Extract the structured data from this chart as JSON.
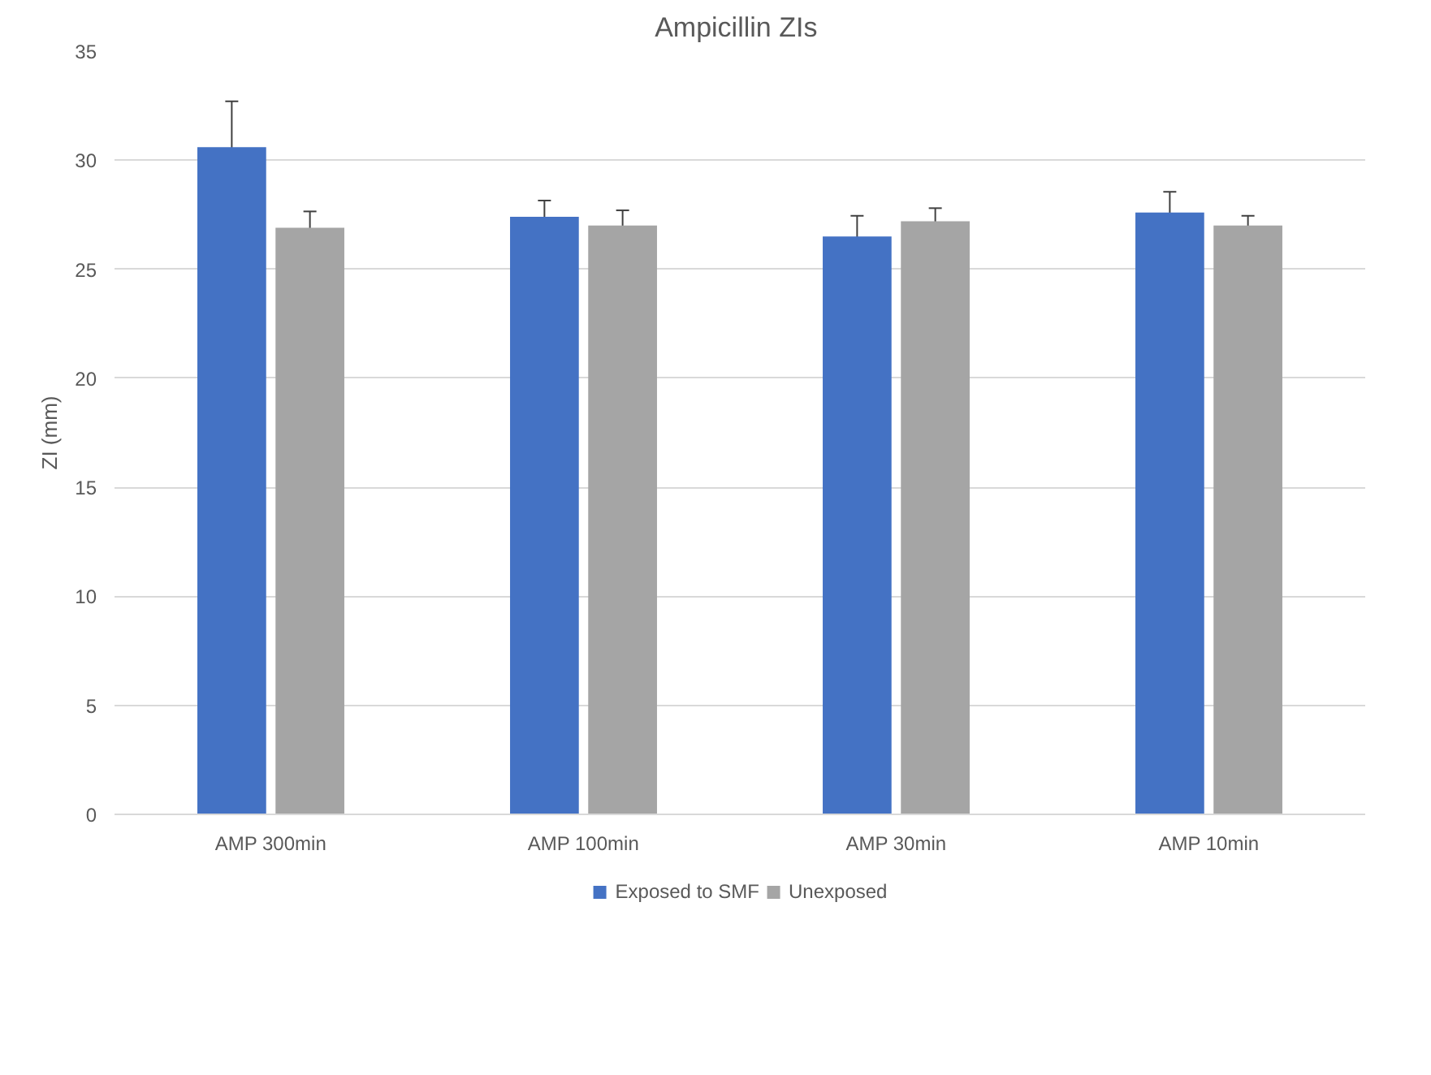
{
  "chart_data": {
    "type": "bar",
    "title": "Ampicillin  ZIs",
    "ylabel": "ZI (mm)",
    "categories": [
      "AMP 300min",
      "AMP 100min",
      "AMP 30min",
      "AMP 10min"
    ],
    "series": [
      {
        "name": "Exposed to SMF",
        "color": "#4472c4",
        "values": [
          30.6,
          27.4,
          26.5,
          27.6
        ],
        "errors": [
          2.1,
          0.75,
          0.95,
          0.95
        ]
      },
      {
        "name": "Unexposed",
        "color": "#a5a5a5",
        "values": [
          26.9,
          27.0,
          27.2,
          27.0
        ],
        "errors": [
          0.75,
          0.7,
          0.6,
          0.45
        ]
      }
    ],
    "ylim": [
      0,
      35
    ],
    "yticks": [
      0,
      5,
      10,
      15,
      20,
      25,
      30,
      35
    ],
    "grid": "y",
    "legend": "bottom"
  }
}
